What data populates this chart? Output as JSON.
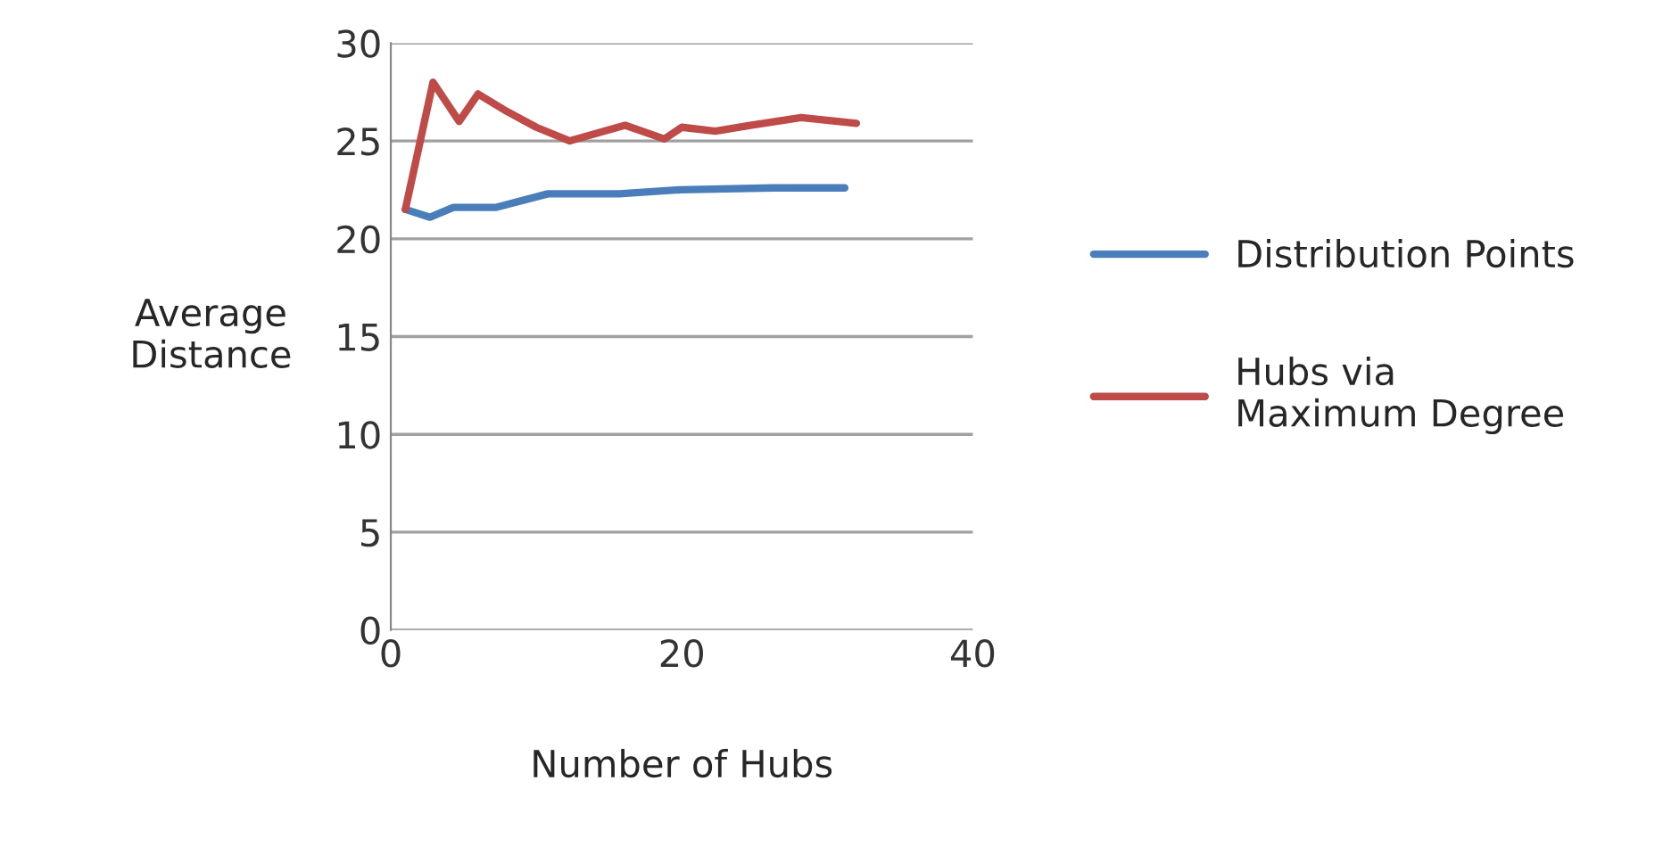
{
  "chart_data": {
    "type": "line",
    "xlabel": "Number of Hubs",
    "ylabel": "Average\nDistance",
    "xlim": [
      0,
      40
    ],
    "xticks": [
      0,
      20,
      40
    ],
    "ylim": [
      0,
      30
    ],
    "yticks": [
      0,
      5,
      10,
      15,
      20,
      25,
      30
    ],
    "grid": "y",
    "legend": "right",
    "marker": "none",
    "line_style": "solid",
    "series": [
      {
        "name": "Distribution Points",
        "color": "#4a7ebb",
        "x": [
          1,
          2.7,
          4.3,
          7.2,
          10.8,
          15.7,
          19.8,
          26.3,
          31.2
        ],
        "values": [
          21.5,
          21.1,
          21.6,
          21.6,
          22.3,
          22.3,
          22.5,
          22.6,
          22.6
        ]
      },
      {
        "name": "Hubs via\nMaximum Degree",
        "color": "#be4b48",
        "x": [
          1,
          2.9,
          4.7,
          6,
          8,
          10,
          12.3,
          16.1,
          18.8,
          20,
          22.3,
          24.7,
          28.2,
          32
        ],
        "values": [
          21.5,
          28.0,
          26.0,
          27.4,
          26.5,
          25.7,
          25.0,
          25.8,
          25.1,
          25.7,
          25.5,
          25.8,
          26.2,
          25.9
        ]
      }
    ]
  }
}
